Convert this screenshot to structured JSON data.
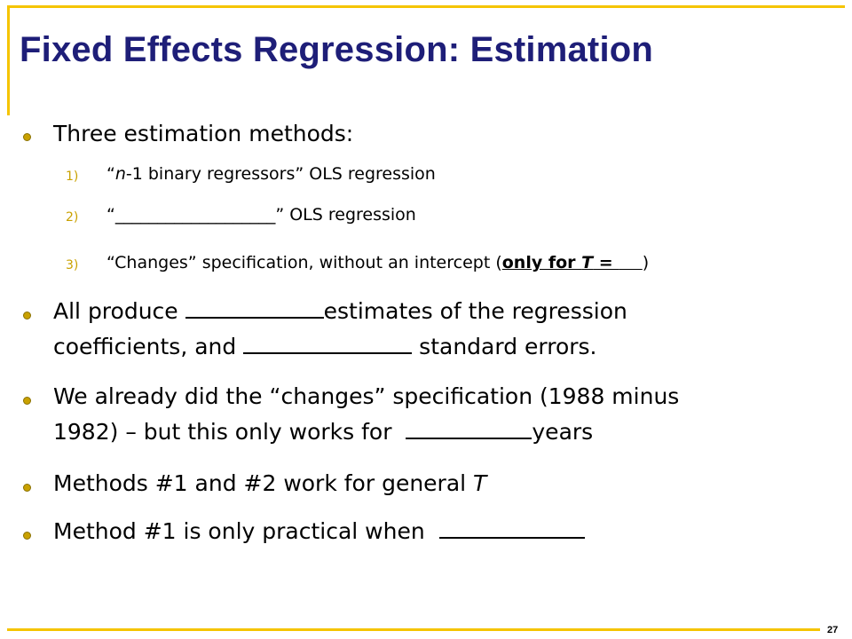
{
  "slide": {
    "title": "Fixed Effects Regression: Estimation",
    "page_number": "27"
  },
  "bullets": {
    "b1": "Three estimation methods:",
    "sub1_num": "1)",
    "sub1_a": "“",
    "sub1_italic": "n",
    "sub1_b": "-1 binary regressors” OLS regression",
    "sub2_num": "2)",
    "sub2_text": "“___________________” OLS regression",
    "sub3_num": "3)",
    "sub3_a": "“Changes” specification, without an intercept (",
    "sub3_underlined": "only for ",
    "sub3_T": "T",
    "sub3_eq": " = ",
    "sub3_close": ")",
    "b2_a": "All produce",
    "b2_b": "estimates of the regression",
    "b2_c": "coefficients, and",
    "b2_d": "standard errors.",
    "b3_a": "We already did the “changes” specification (1988 minus",
    "b3_b": "1982) – but this only works for",
    "b3_c": "years",
    "b4_a": "Methods #1 and #2 work for general ",
    "b4_T": "T",
    "b5_a": "Method #1 is only practical when"
  },
  "colors": {
    "title": "#1e1e78",
    "accent_rule": "#f5c400",
    "bullet": "#c9a100"
  }
}
